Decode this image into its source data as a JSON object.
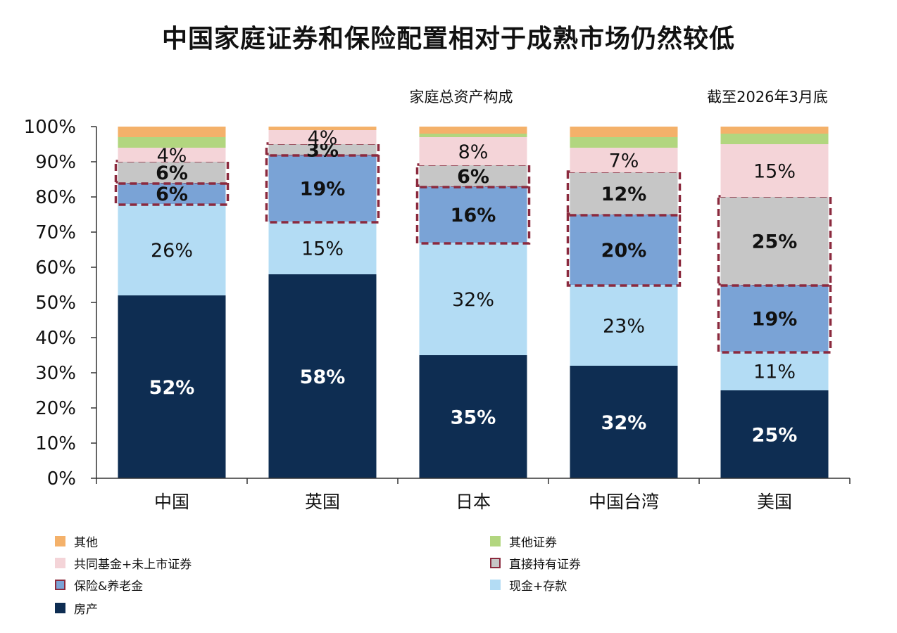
{
  "title": "中国家庭证券和保险配置相对于成熟市场仍然较低",
  "subtitle": "家庭总资产构成",
  "date_note": "截至2026年3月底",
  "colors": {
    "other": "#f4b16a",
    "other_securities": "#b2d67f",
    "funds": "#f4d4d8",
    "direct": "#c6c6c6",
    "insurance": "#7aa3d6",
    "cash": "#b3dcf4",
    "property": "#0e2d52",
    "highlight": "#8b2a3e"
  },
  "legend": {
    "items": [
      {
        "key": "other",
        "label": "其他",
        "highlight": false
      },
      {
        "key": "other_securities",
        "label": "其他证券",
        "highlight": false
      },
      {
        "key": "funds",
        "label": "共同基金+未上市证券",
        "highlight": false
      },
      {
        "key": "direct",
        "label": "直接持有证券",
        "highlight": true
      },
      {
        "key": "insurance",
        "label": "保险&养老金",
        "highlight": true
      },
      {
        "key": "cash",
        "label": "现金+存款",
        "highlight": false
      },
      {
        "key": "property",
        "label": "房产",
        "highlight": false
      }
    ]
  },
  "chart_data": {
    "type": "bar",
    "stacked": true,
    "categories": [
      "中国",
      "英国",
      "日本",
      "中国台湾",
      "美国"
    ],
    "ylim": [
      0,
      100
    ],
    "y_ticks": [
      "0%",
      "10%",
      "20%",
      "30%",
      "40%",
      "50%",
      "60%",
      "70%",
      "80%",
      "90%",
      "100%"
    ],
    "series": [
      {
        "key": "property",
        "name": "房产",
        "values": [
          52,
          58,
          35,
          32,
          25
        ],
        "labels": [
          "52%",
          "58%",
          "35%",
          "32%",
          "25%"
        ]
      },
      {
        "key": "cash",
        "name": "现金+存款",
        "values": [
          26,
          15,
          32,
          23,
          11
        ],
        "labels": [
          "26%",
          "15%",
          "32%",
          "23%",
          "11%"
        ]
      },
      {
        "key": "insurance",
        "name": "保险&养老金",
        "values": [
          6,
          19,
          16,
          20,
          19
        ],
        "labels": [
          "6%",
          "19%",
          "16%",
          "20%",
          "19%"
        ],
        "highlight": true
      },
      {
        "key": "direct",
        "name": "直接持有证券",
        "values": [
          6,
          3,
          6,
          12,
          25
        ],
        "labels": [
          "6%",
          "3%",
          "6%",
          "12%",
          "25%"
        ],
        "highlight": true
      },
      {
        "key": "funds",
        "name": "共同基金+未上市证券",
        "values": [
          4,
          4,
          8,
          7,
          15
        ],
        "labels": [
          "4%",
          "4%",
          "8%",
          "7%",
          "15%"
        ]
      },
      {
        "key": "other_securities",
        "name": "其他证券",
        "values": [
          3,
          0,
          1,
          3,
          3
        ],
        "labels": [
          "",
          "",
          "",
          "",
          ""
        ]
      },
      {
        "key": "other",
        "name": "其他",
        "values": [
          3,
          1,
          2,
          3,
          2
        ],
        "labels": [
          "",
          "",
          "",
          "",
          ""
        ]
      }
    ]
  }
}
